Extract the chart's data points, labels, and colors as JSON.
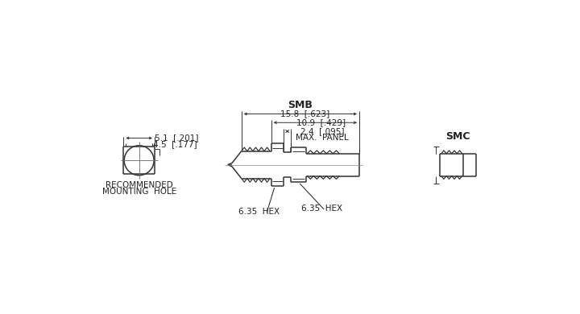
{
  "bg_color": "#ffffff",
  "line_color": "#333333",
  "text_color": "#222222",
  "labels": {
    "hex1": "6.35  HEX",
    "hex2": "6.35  HEX",
    "dim1": "2.4  [.095]",
    "dim1b": "MAX.  PANEL",
    "dim2": "10.9  [.429]",
    "dim3": "15.8  [.623]",
    "smb": "SMB",
    "smc": "SMC",
    "rec1": "RECOMMENDED",
    "rec2": "MOUNTING  HOLE",
    "d1": "5.1  [.201]",
    "d2": "4.5  [.177]"
  }
}
